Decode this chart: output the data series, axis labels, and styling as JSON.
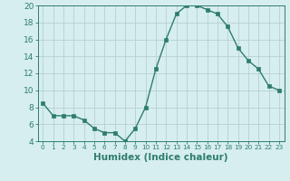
{
  "x": [
    0,
    1,
    2,
    3,
    4,
    5,
    6,
    7,
    8,
    9,
    10,
    11,
    12,
    13,
    14,
    15,
    16,
    17,
    18,
    19,
    20,
    21,
    22,
    23
  ],
  "y": [
    8.5,
    7.0,
    7.0,
    7.0,
    6.5,
    5.5,
    5.0,
    5.0,
    4.0,
    5.5,
    8.0,
    12.5,
    16.0,
    19.0,
    20.0,
    20.0,
    19.5,
    19.0,
    17.5,
    15.0,
    13.5,
    12.5,
    10.5,
    10.0
  ],
  "xlabel": "Humidex (Indice chaleur)",
  "ylim": [
    4,
    20
  ],
  "xlim": [
    -0.5,
    23.5
  ],
  "yticks": [
    4,
    6,
    8,
    10,
    12,
    14,
    16,
    18,
    20
  ],
  "xticks": [
    0,
    1,
    2,
    3,
    4,
    5,
    6,
    7,
    8,
    9,
    10,
    11,
    12,
    13,
    14,
    15,
    16,
    17,
    18,
    19,
    20,
    21,
    22,
    23
  ],
  "line_color": "#2e7d6e",
  "marker": "s",
  "marker_size": 2.5,
  "bg_color": "#d6eeee",
  "grid_color": "#b8d0d0",
  "xlabel_fontsize": 7.5,
  "tick_fontsize": 6.5,
  "xtick_fontsize": 5.2
}
